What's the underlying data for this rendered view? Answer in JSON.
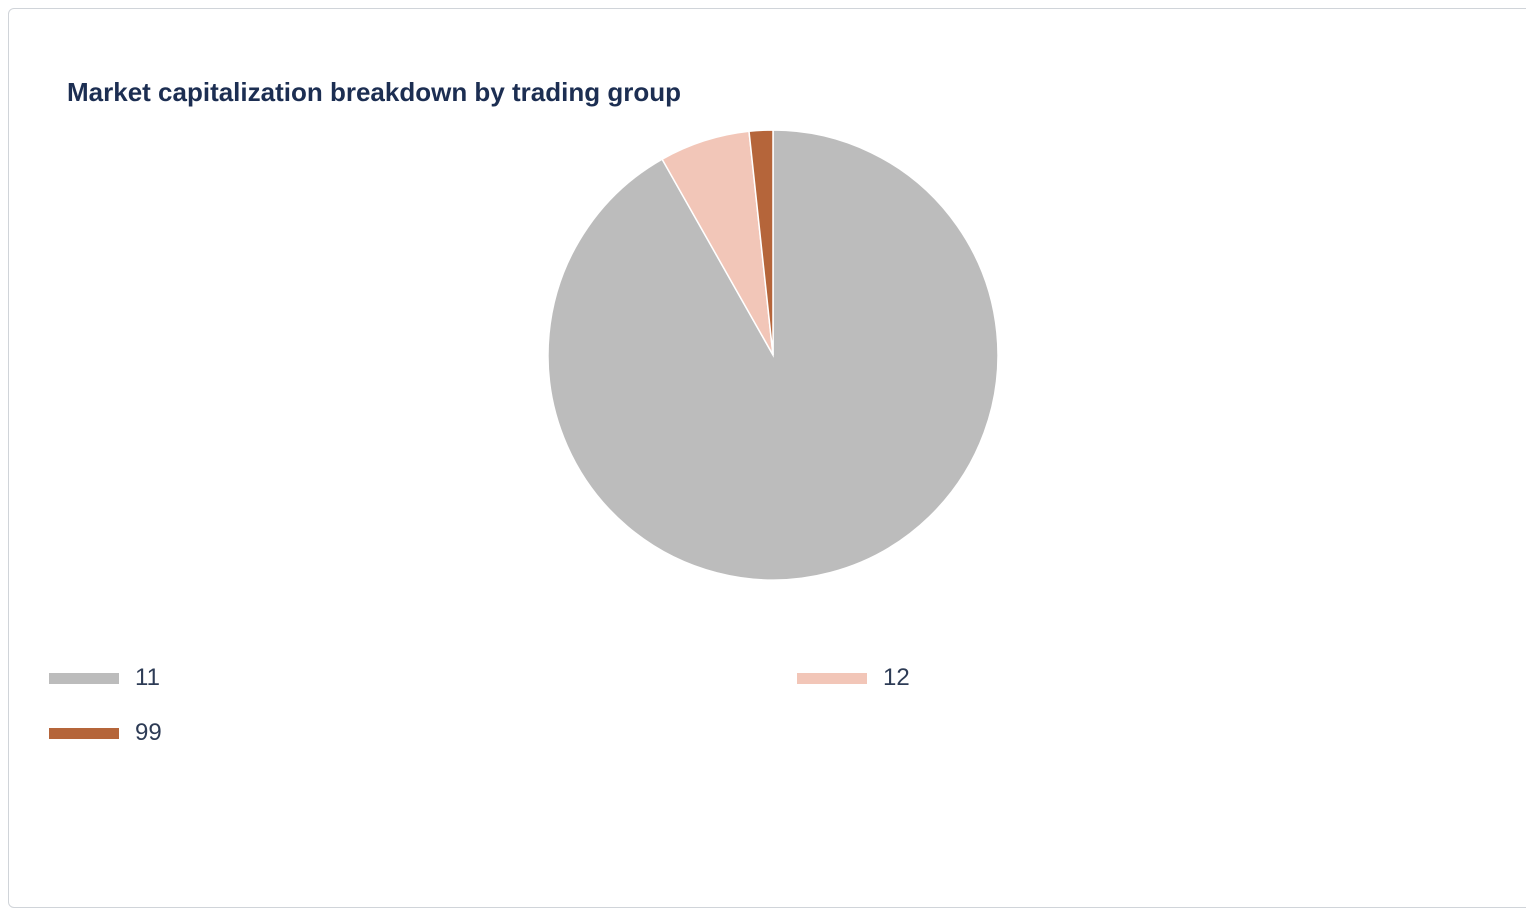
{
  "chart_data": {
    "type": "pie",
    "title": "Market capitalization breakdown by trading group",
    "categories": [
      "11",
      "12",
      "99"
    ],
    "values": [
      91.8,
      6.5,
      1.7
    ],
    "colors": [
      "#bcbcbc",
      "#f2c6b8",
      "#b5653a"
    ],
    "legend": {
      "placement": "bottom",
      "items": [
        {
          "label": "11",
          "color": "#bcbcbc"
        },
        {
          "label": "12",
          "color": "#f2c6b8"
        },
        {
          "label": "99",
          "color": "#b5653a"
        }
      ]
    }
  }
}
